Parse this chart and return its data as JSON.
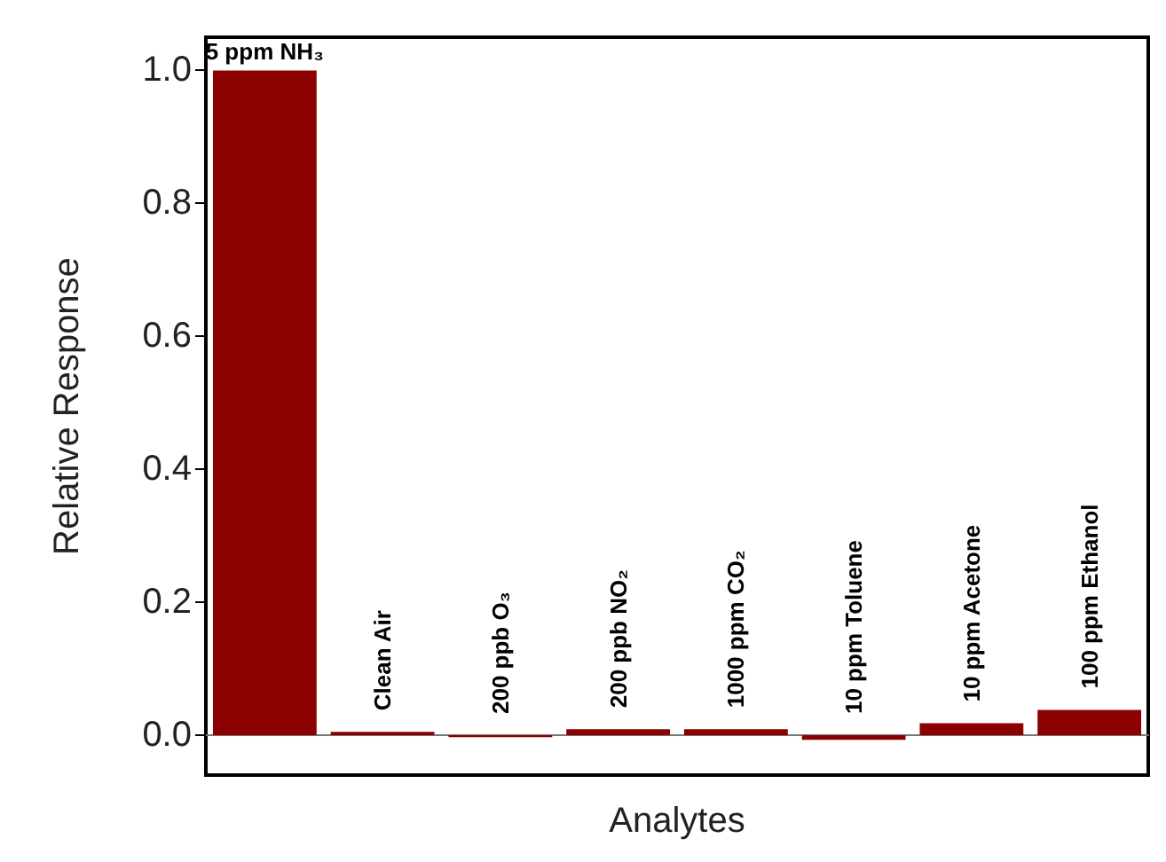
{
  "chart_data": {
    "type": "bar",
    "xlabel": "Analytes",
    "ylabel": "Relative Response",
    "categories": [
      "5 ppm NH₃",
      "Clean Air",
      "200 ppb O₃",
      "200 ppb NO₂",
      "1000 ppm CO₂",
      "10 ppm Toluene",
      "10 ppm Acetone",
      "100 ppm Ethanol"
    ],
    "values": [
      1.0,
      0.005,
      -0.003,
      0.009,
      0.009,
      -0.007,
      0.018,
      0.038
    ],
    "color": "#8b0000",
    "ylim": [
      -0.06,
      1.05
    ],
    "yticks": [
      {
        "value": 0,
        "label": "0.0"
      },
      0.2,
      0.4,
      0.6,
      0.8,
      {
        "value": 1,
        "label": "1.0"
      }
    ],
    "grid": false
  }
}
